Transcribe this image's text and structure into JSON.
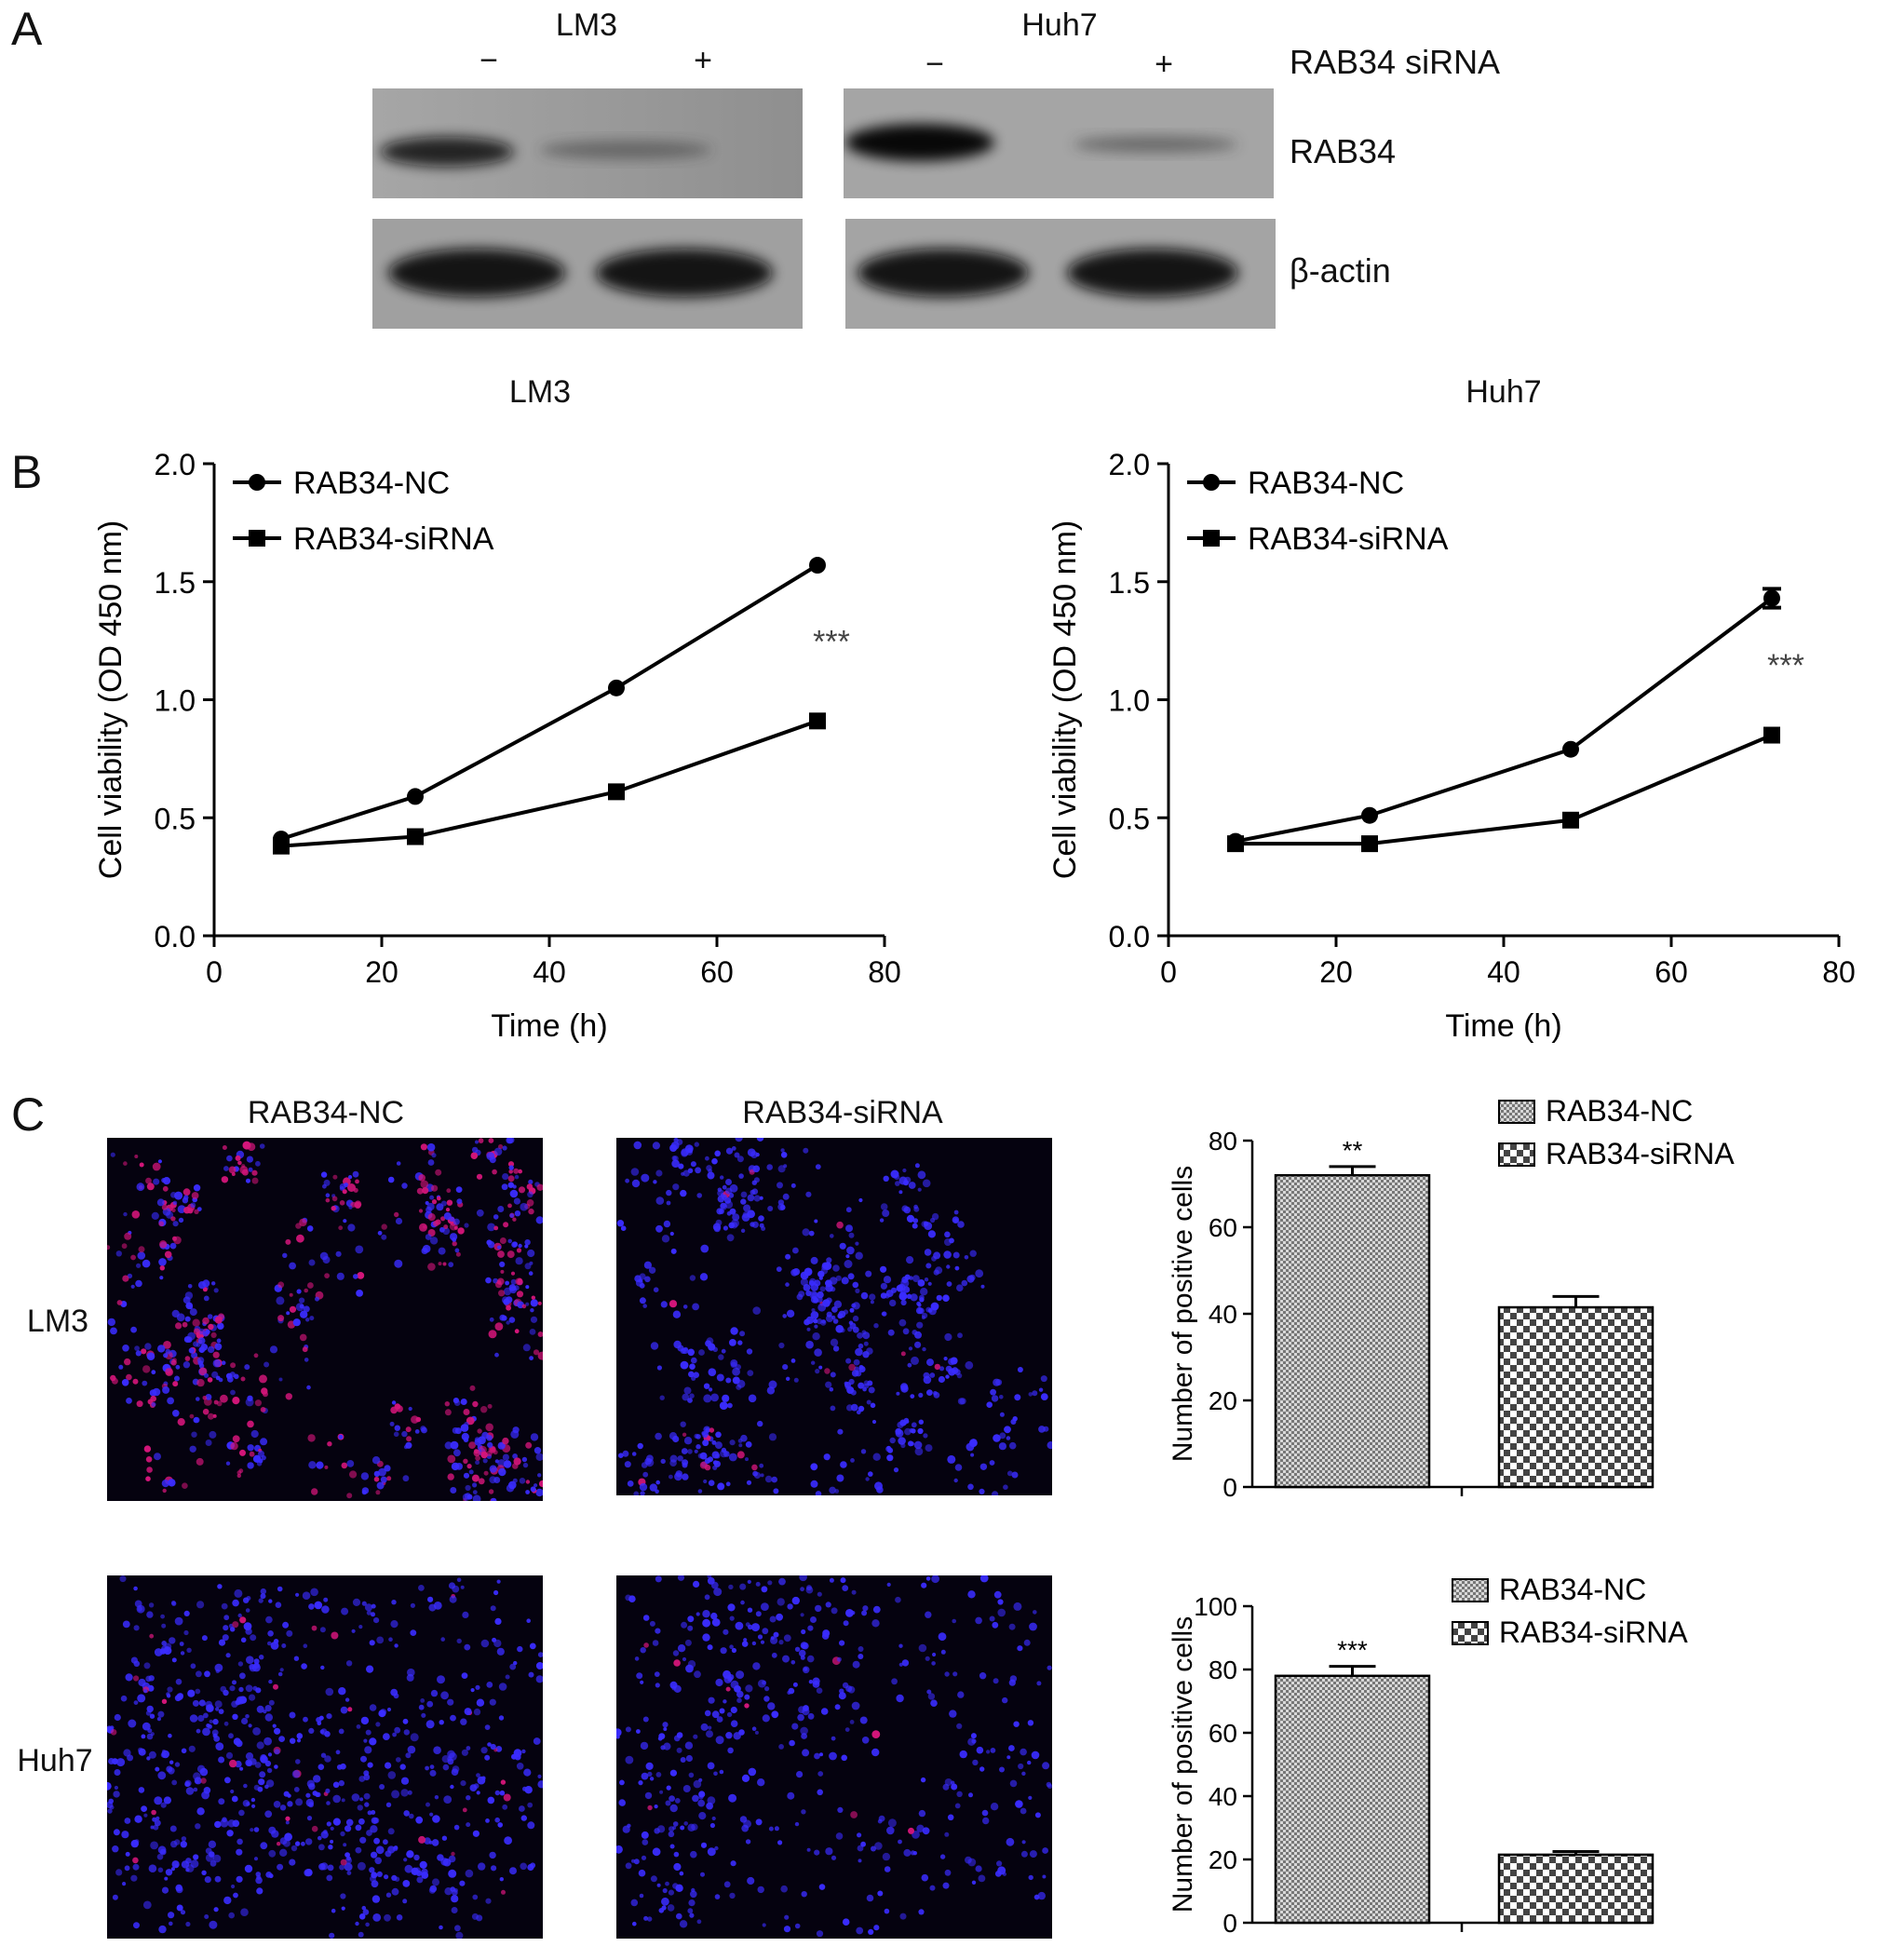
{
  "panel_a": {
    "letter": "A",
    "cells": [
      {
        "name": "LM3",
        "lanes": [
          "−",
          "+"
        ]
      },
      {
        "name": "Huh7",
        "lanes": [
          "−",
          "+"
        ]
      }
    ],
    "treatment_label": "RAB34 siRNA",
    "bands": [
      "RAB34",
      "β-actin"
    ],
    "band_intensity": {
      "RAB34": {
        "LM3": [
          0.85,
          0.35
        ],
        "Huh7": [
          1.0,
          0.4
        ]
      },
      "beta_actin": {
        "LM3": [
          1.0,
          1.0
        ],
        "Huh7": [
          1.0,
          1.0
        ]
      }
    }
  },
  "panel_b": {
    "letter": "B",
    "titles": [
      "LM3",
      "Huh7"
    ]
  },
  "panel_c": {
    "letter": "C",
    "col_titles": [
      "RAB34-NC",
      "RAB34-siRNA"
    ],
    "row_labels": [
      "LM3",
      "Huh7"
    ]
  },
  "colors": {
    "line": "#000000",
    "nuclei": "#3a2cff",
    "positive": "#d4157a",
    "background": "#05020f"
  },
  "chart_data": [
    {
      "type": "line",
      "title": "LM3",
      "xlabel": "Time (h)",
      "ylabel": "Cell viability (OD 450 nm)",
      "xlim": [
        0,
        80
      ],
      "ylim": [
        0,
        2.0
      ],
      "xticks": [
        "0",
        "20",
        "40",
        "60",
        "80"
      ],
      "yticks": [
        "0.0",
        "0.5",
        "1.0",
        "1.5",
        "2.0"
      ],
      "x": [
        8,
        24,
        48,
        72
      ],
      "series": [
        {
          "name": "RAB34-NC",
          "marker": "circle",
          "values": [
            0.41,
            0.59,
            1.05,
            1.57
          ]
        },
        {
          "name": "RAB34-siRNA",
          "marker": "square",
          "values": [
            0.38,
            0.42,
            0.61,
            0.91
          ]
        }
      ],
      "annotation": "***",
      "legend_position": "top-left"
    },
    {
      "type": "line",
      "title": "Huh7",
      "xlabel": "Time (h)",
      "ylabel": "Cell viability (OD 450 nm)",
      "xlim": [
        0,
        80
      ],
      "ylim": [
        0,
        2.0
      ],
      "xticks": [
        "0",
        "20",
        "40",
        "60",
        "80"
      ],
      "yticks": [
        "0.0",
        "0.5",
        "1.0",
        "1.5",
        "2.0"
      ],
      "x": [
        8,
        24,
        48,
        72
      ],
      "series": [
        {
          "name": "RAB34-NC",
          "marker": "circle",
          "values": [
            0.4,
            0.51,
            0.79,
            1.43
          ],
          "errors": [
            0,
            0,
            0,
            0.04
          ]
        },
        {
          "name": "RAB34-siRNA",
          "marker": "square",
          "values": [
            0.39,
            0.39,
            0.49,
            0.85
          ]
        }
      ],
      "annotation": "***",
      "legend_position": "top-left"
    },
    {
      "type": "bar",
      "ylabel": "Number of positive cells",
      "ylim": [
        0,
        80
      ],
      "yticks": [
        "0",
        "20",
        "40",
        "60",
        "80"
      ],
      "series": [
        {
          "name": "RAB34-NC",
          "pattern": "fine-hatch",
          "values": [
            72
          ],
          "errors": [
            2
          ]
        },
        {
          "name": "RAB34-siRNA",
          "pattern": "checker",
          "values": [
            41.5
          ],
          "errors": [
            2.5
          ]
        }
      ],
      "annotation": "**",
      "legend_position": "top-right"
    },
    {
      "type": "bar",
      "ylabel": "Number of positive cells",
      "ylim": [
        0,
        100
      ],
      "yticks": [
        "0",
        "20",
        "40",
        "60",
        "80",
        "100"
      ],
      "series": [
        {
          "name": "RAB34-NC",
          "pattern": "fine-hatch",
          "values": [
            78
          ],
          "errors": [
            3
          ]
        },
        {
          "name": "RAB34-siRNA",
          "pattern": "checker",
          "values": [
            21.5
          ],
          "errors": [
            1
          ]
        }
      ],
      "annotation": "***",
      "legend_position": "top-right"
    }
  ]
}
